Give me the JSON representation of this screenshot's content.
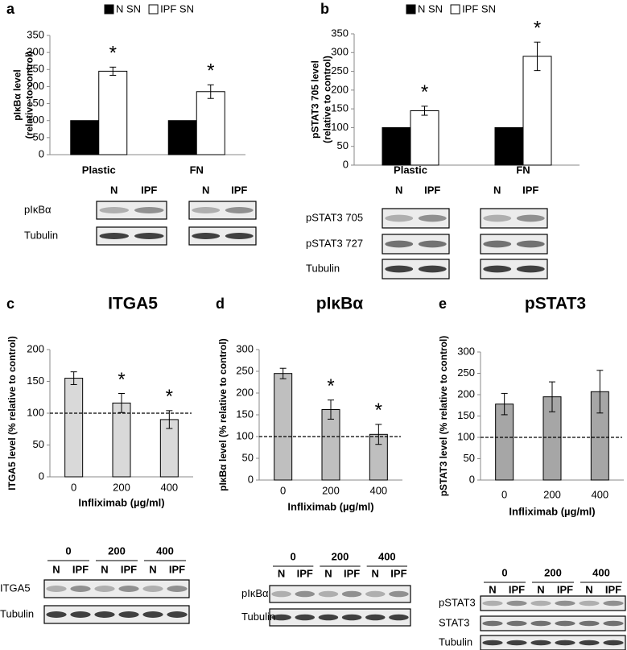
{
  "chart_data": [
    {
      "type": "bar",
      "panel": "a",
      "ylabel": [
        "pIκBα level",
        "(relative to control)"
      ],
      "categories": [
        "Plastic",
        "FN"
      ],
      "series": [
        {
          "name": "N SN",
          "color": "#000000",
          "values": [
            100,
            100
          ],
          "errors": [
            0,
            0
          ],
          "significance": [
            null,
            null
          ]
        },
        {
          "name": "IPF SN",
          "color": "#ffffff",
          "values": [
            245,
            185
          ],
          "errors": [
            12,
            20
          ],
          "significance": [
            "*",
            "*"
          ]
        }
      ],
      "ylim": [
        0,
        350
      ],
      "yticks": [
        0,
        50,
        100,
        150,
        200,
        250,
        300,
        350
      ],
      "legend": "top",
      "blot": {
        "lanes": [
          "N",
          "IPF",
          "N",
          "IPF"
        ],
        "rows": [
          "pIκBα",
          "Tubulin"
        ]
      }
    },
    {
      "type": "bar",
      "panel": "b",
      "ylabel": [
        "pSTAT3 705 level",
        "(relative to control)"
      ],
      "categories": [
        "Plastic",
        "FN"
      ],
      "series": [
        {
          "name": "N SN",
          "color": "#000000",
          "values": [
            100,
            100
          ],
          "errors": [
            0,
            0
          ],
          "significance": [
            null,
            null
          ]
        },
        {
          "name": "IPF SN",
          "color": "#ffffff",
          "values": [
            145,
            290
          ],
          "errors": [
            12,
            38
          ],
          "significance": [
            "*",
            "*"
          ]
        }
      ],
      "ylim": [
        0,
        350
      ],
      "yticks": [
        0,
        50,
        100,
        150,
        200,
        250,
        300,
        350
      ],
      "legend": "top",
      "blot": {
        "lanes": [
          "N",
          "IPF",
          "N",
          "IPF"
        ],
        "rows": [
          "pSTAT3 705",
          "pSTAT3 727",
          "Tubulin"
        ]
      }
    },
    {
      "type": "bar",
      "panel": "c",
      "title": "ITGA5",
      "ylabel": [
        "ITGA5 level (% relative to control)"
      ],
      "xlabel": "Infliximab (µg/ml)",
      "categories": [
        "0",
        "200",
        "400"
      ],
      "series": [
        {
          "color": "#d9d9d9",
          "values": [
            155,
            116,
            90
          ],
          "errors": [
            10,
            15,
            14
          ],
          "significance": [
            null,
            "*",
            "*"
          ]
        }
      ],
      "ylim": [
        0,
        200
      ],
      "yticks": [
        0,
        50,
        100,
        150,
        200
      ],
      "refline": 100,
      "blot": {
        "groups": [
          "0",
          "200",
          "400"
        ],
        "lanes": [
          "N",
          "IPF",
          "N",
          "IPF",
          "N",
          "IPF"
        ],
        "rows": [
          "ITGA5",
          "Tubulin"
        ]
      }
    },
    {
      "type": "bar",
      "panel": "d",
      "title": "pIκBα",
      "ylabel": [
        "pIκBα level (% relative to control)"
      ],
      "xlabel": "Infliximab (µg/ml)",
      "categories": [
        "0",
        "200",
        "400"
      ],
      "series": [
        {
          "color": "#bfbfbf",
          "values": [
            245,
            162,
            105
          ],
          "errors": [
            12,
            22,
            23
          ],
          "significance": [
            null,
            "*",
            "*"
          ]
        }
      ],
      "ylim": [
        0,
        300
      ],
      "yticks": [
        0,
        50,
        100,
        150,
        200,
        250,
        300
      ],
      "refline": 100,
      "blot": {
        "groups": [
          "0",
          "200",
          "400"
        ],
        "lanes": [
          "N",
          "IPF",
          "N",
          "IPF",
          "N",
          "IPF"
        ],
        "rows": [
          "pIκBα",
          "Tubulin"
        ]
      }
    },
    {
      "type": "bar",
      "panel": "e",
      "title": "pSTAT3",
      "ylabel": [
        "pSTAT3 level (% relative to control)"
      ],
      "xlabel": "Infliximab (µg/ml)",
      "categories": [
        "0",
        "200",
        "400"
      ],
      "series": [
        {
          "color": "#a6a6a6",
          "values": [
            178,
            195,
            207
          ],
          "errors": [
            25,
            35,
            50
          ],
          "significance": [
            null,
            null,
            null
          ]
        }
      ],
      "ylim": [
        0,
        300
      ],
      "yticks": [
        0,
        50,
        100,
        150,
        200,
        250,
        300
      ],
      "refline": 100,
      "blot": {
        "groups": [
          "0",
          "200",
          "400"
        ],
        "lanes": [
          "N",
          "IPF",
          "N",
          "IPF",
          "N",
          "IPF"
        ],
        "rows": [
          "pSTAT3",
          "STAT3",
          "Tubulin"
        ]
      }
    }
  ]
}
